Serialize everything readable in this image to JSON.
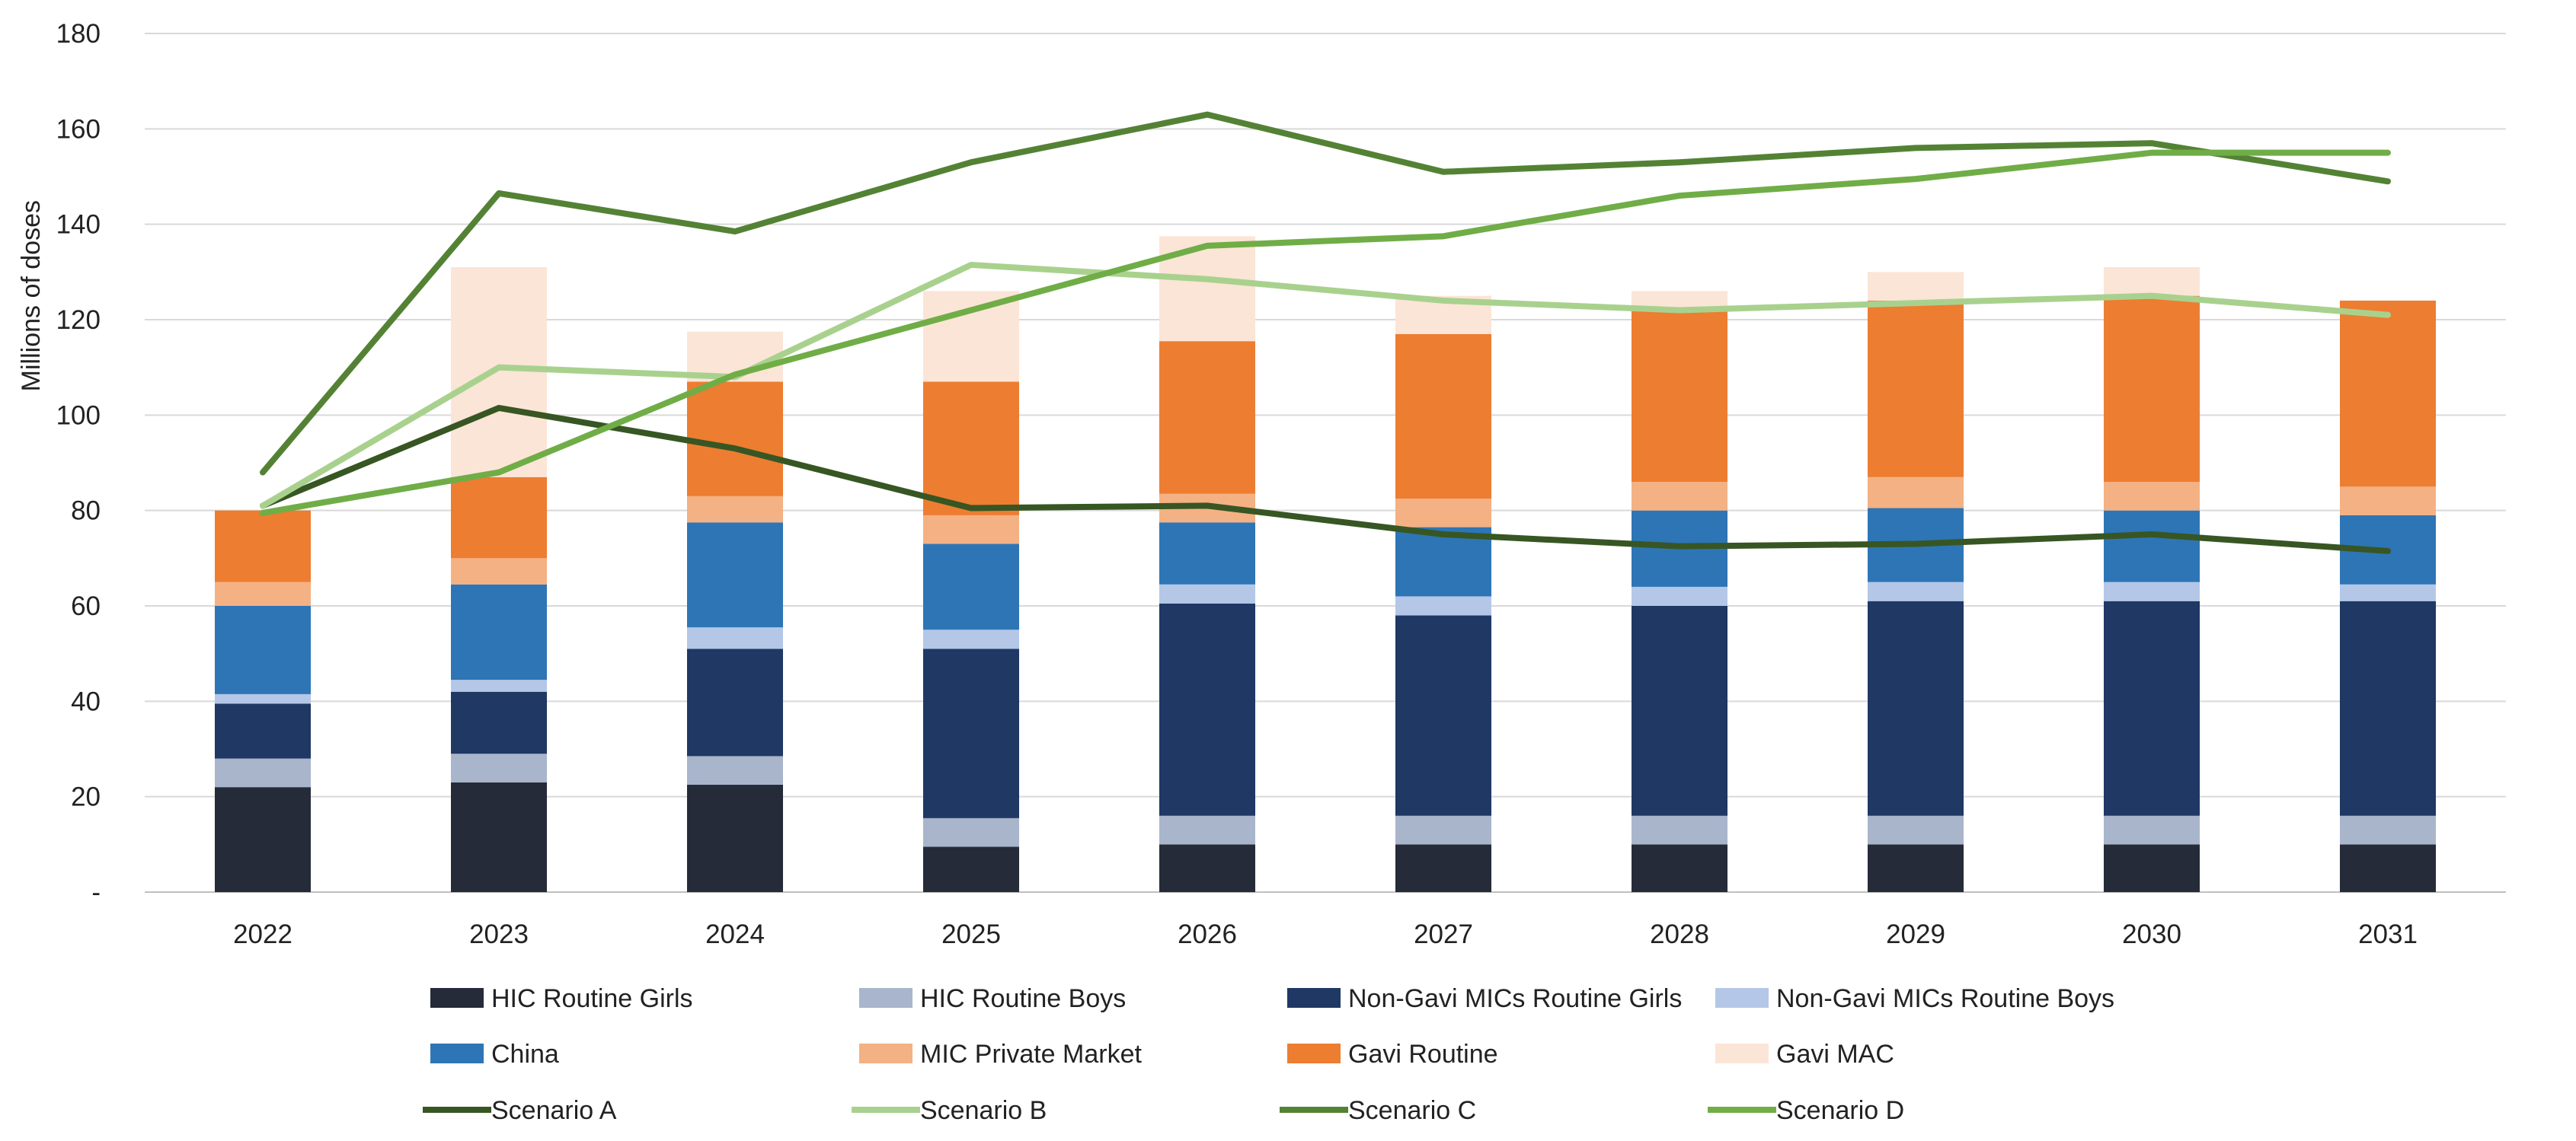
{
  "chart_data": {
    "type": "bar",
    "stacked": true,
    "categories": [
      "2022",
      "2023",
      "2024",
      "2025",
      "2026",
      "2027",
      "2028",
      "2029",
      "2030",
      "2031"
    ],
    "ylabel": "Millions of doses",
    "xlabel": "",
    "ylim": [
      0,
      180
    ],
    "yticks": [
      "-",
      "20",
      "40",
      "60",
      "80",
      "100",
      "120",
      "140",
      "160",
      "180"
    ],
    "grid": true,
    "legend_position": "bottom",
    "series": [
      {
        "name": "HIC Routine Girls",
        "kind": "bar",
        "color": "#252b38",
        "values": [
          22,
          23,
          22.5,
          9.5,
          10,
          10,
          10,
          10,
          10,
          10
        ]
      },
      {
        "name": "HIC Routine Boys",
        "kind": "bar",
        "color": "#a9b5cb",
        "values": [
          6,
          6,
          6,
          6,
          6,
          6,
          6,
          6,
          6,
          6
        ]
      },
      {
        "name": "Non-Gavi MICs Routine Girls",
        "kind": "bar",
        "color": "#1f3864",
        "values": [
          11.5,
          13,
          22.5,
          35.5,
          44.5,
          42,
          44,
          45,
          45,
          45
        ]
      },
      {
        "name": "Non-Gavi MICs Routine Boys",
        "kind": "bar",
        "color": "#b4c7e7",
        "values": [
          2,
          2.5,
          4.5,
          4,
          4,
          4,
          4,
          4,
          4,
          3.5
        ]
      },
      {
        "name": "China",
        "kind": "bar",
        "color": "#2e75b6",
        "values": [
          18.5,
          20,
          22,
          18,
          13,
          14.5,
          16,
          15.5,
          15,
          14.5
        ]
      },
      {
        "name": "MIC Private Market",
        "kind": "bar",
        "color": "#f4b183",
        "values": [
          5,
          5.5,
          5.5,
          6,
          6,
          6,
          6,
          6.5,
          6,
          6
        ]
      },
      {
        "name": "Gavi Routine",
        "kind": "bar",
        "color": "#ed7d31",
        "values": [
          15,
          17,
          24,
          28,
          32,
          34.5,
          36,
          37,
          39,
          39
        ]
      },
      {
        "name": "Gavi MAC",
        "kind": "bar",
        "color": "#fbe5d6",
        "values": [
          0,
          44,
          10.5,
          19,
          22,
          8,
          4,
          6,
          6,
          0
        ]
      },
      {
        "name": "Scenario A",
        "kind": "line",
        "color": "#375623",
        "values": [
          81,
          101.5,
          93,
          80.5,
          81,
          75,
          72.5,
          73,
          75,
          71.5
        ]
      },
      {
        "name": "Scenario B",
        "kind": "line",
        "color": "#a9d18e",
        "values": [
          81,
          110,
          108,
          131.5,
          128.5,
          124,
          122,
          123.5,
          125,
          121
        ]
      },
      {
        "name": "Scenario C",
        "kind": "line",
        "color": "#548235",
        "values": [
          88,
          146.5,
          138.5,
          153,
          163,
          151,
          153,
          156,
          157,
          149
        ]
      },
      {
        "name": "Scenario D",
        "kind": "line",
        "color": "#70ad47",
        "values": [
          79.5,
          88,
          108.5,
          122,
          135.5,
          137.5,
          146,
          149.5,
          155,
          155
        ]
      }
    ],
    "legend_rows": [
      [
        "HIC Routine Girls",
        "HIC Routine Boys",
        "Non-Gavi MICs Routine Girls",
        "Non-Gavi MICs Routine Boys"
      ],
      [
        "China",
        "MIC Private Market",
        "Gavi Routine",
        "Gavi MAC"
      ],
      [
        "Scenario A",
        "Scenario B",
        "Scenario C",
        "Scenario D"
      ]
    ]
  }
}
